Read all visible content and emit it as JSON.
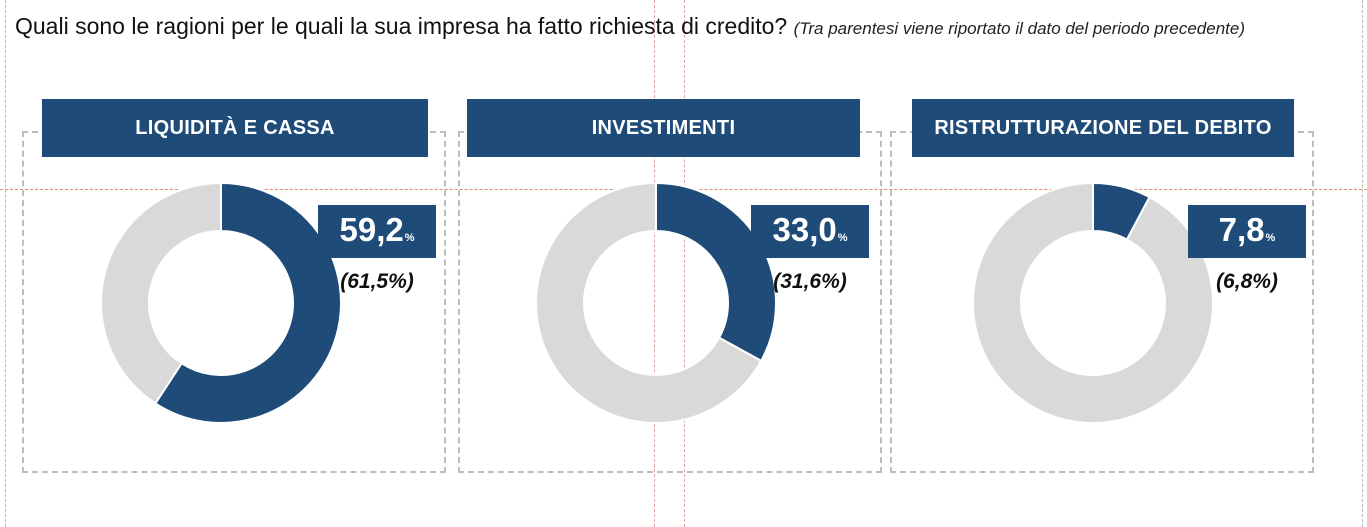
{
  "title": {
    "question": "Quali sono le ragioni per le quali la sua impresa ha fatto richiesta di credito?",
    "note": "(Tra parentesi viene riportato il dato del periodo precedente)"
  },
  "colors": {
    "accent": "#1f4b79",
    "track": "#d9d9d9"
  },
  "chart_data": [
    {
      "type": "pie",
      "title": "LIQUIDITÀ E CASSA",
      "value": 59.2,
      "value_label": "59,2",
      "unit": "%",
      "previous_label": "(61,5%)",
      "previous_value": 61.5
    },
    {
      "type": "pie",
      "title": "INVESTIMENTI",
      "value": 33.0,
      "value_label": "33,0",
      "unit": "%",
      "previous_label": "(31,6%)",
      "previous_value": 31.6
    },
    {
      "type": "pie",
      "title": "RISTRUTTURAZIONE DEL DEBITO",
      "value": 7.8,
      "value_label": "7,8",
      "unit": "%",
      "previous_label": "(6,8%)",
      "previous_value": 6.8
    }
  ]
}
